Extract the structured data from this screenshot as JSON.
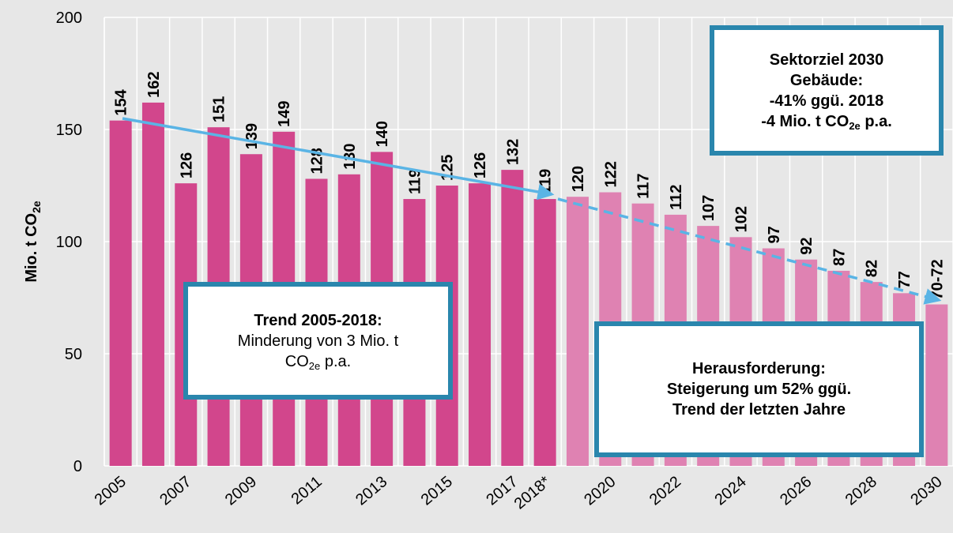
{
  "chart_data": {
    "type": "bar",
    "ylabel": {
      "text": "Mio. t CO",
      "sub": "2e"
    },
    "categories": [
      "2005",
      null,
      "2007",
      null,
      "2009",
      null,
      "2011",
      null,
      "2013",
      null,
      "2015",
      null,
      "2017",
      "2018*",
      null,
      "2020",
      null,
      "2022",
      null,
      "2024",
      null,
      "2026",
      null,
      "2028",
      null,
      "2030"
    ],
    "series": [
      {
        "color": "#d2468c",
        "values": [
          154,
          162,
          126,
          151,
          139,
          149,
          128,
          130,
          140,
          119,
          125,
          126,
          132,
          119,
          null,
          null,
          null,
          null,
          null,
          null,
          null,
          null,
          null,
          null,
          null,
          null
        ]
      },
      {
        "color": "#df82b2",
        "values": [
          null,
          null,
          null,
          null,
          null,
          null,
          null,
          null,
          null,
          null,
          null,
          null,
          null,
          null,
          120,
          122,
          117,
          112,
          107,
          102,
          97,
          92,
          87,
          82,
          77,
          72
        ],
        "value_labels": [
          null,
          null,
          null,
          null,
          null,
          null,
          null,
          null,
          null,
          null,
          null,
          null,
          null,
          null,
          "120",
          "122",
          "117",
          "112",
          "107",
          "102",
          "97",
          "92",
          "87",
          "82",
          "77",
          "70-72"
        ]
      }
    ],
    "ylim": [
      0,
      200
    ],
    "yticks": [
      0,
      50,
      100,
      150,
      200
    ],
    "grid": true,
    "annotations": {
      "target": {
        "lines": [
          "Sektorziel 2030",
          "Gebäude:",
          "-41% ggü. 2018"
        ],
        "last": {
          "text": "-4 Mio. t CO",
          "sub": "2e",
          "after": " p.a."
        }
      },
      "trend": {
        "title": "Trend 2005-2018:",
        "line": "Minderung von 3 Mio. t",
        "last": {
          "text": "CO",
          "sub": "2e",
          "after": " p.a."
        }
      },
      "challenge": {
        "lines": [
          "Herausforderung:",
          "Steigerung um 52% ggü.",
          "Trend der letzten Jahre"
        ]
      }
    }
  }
}
